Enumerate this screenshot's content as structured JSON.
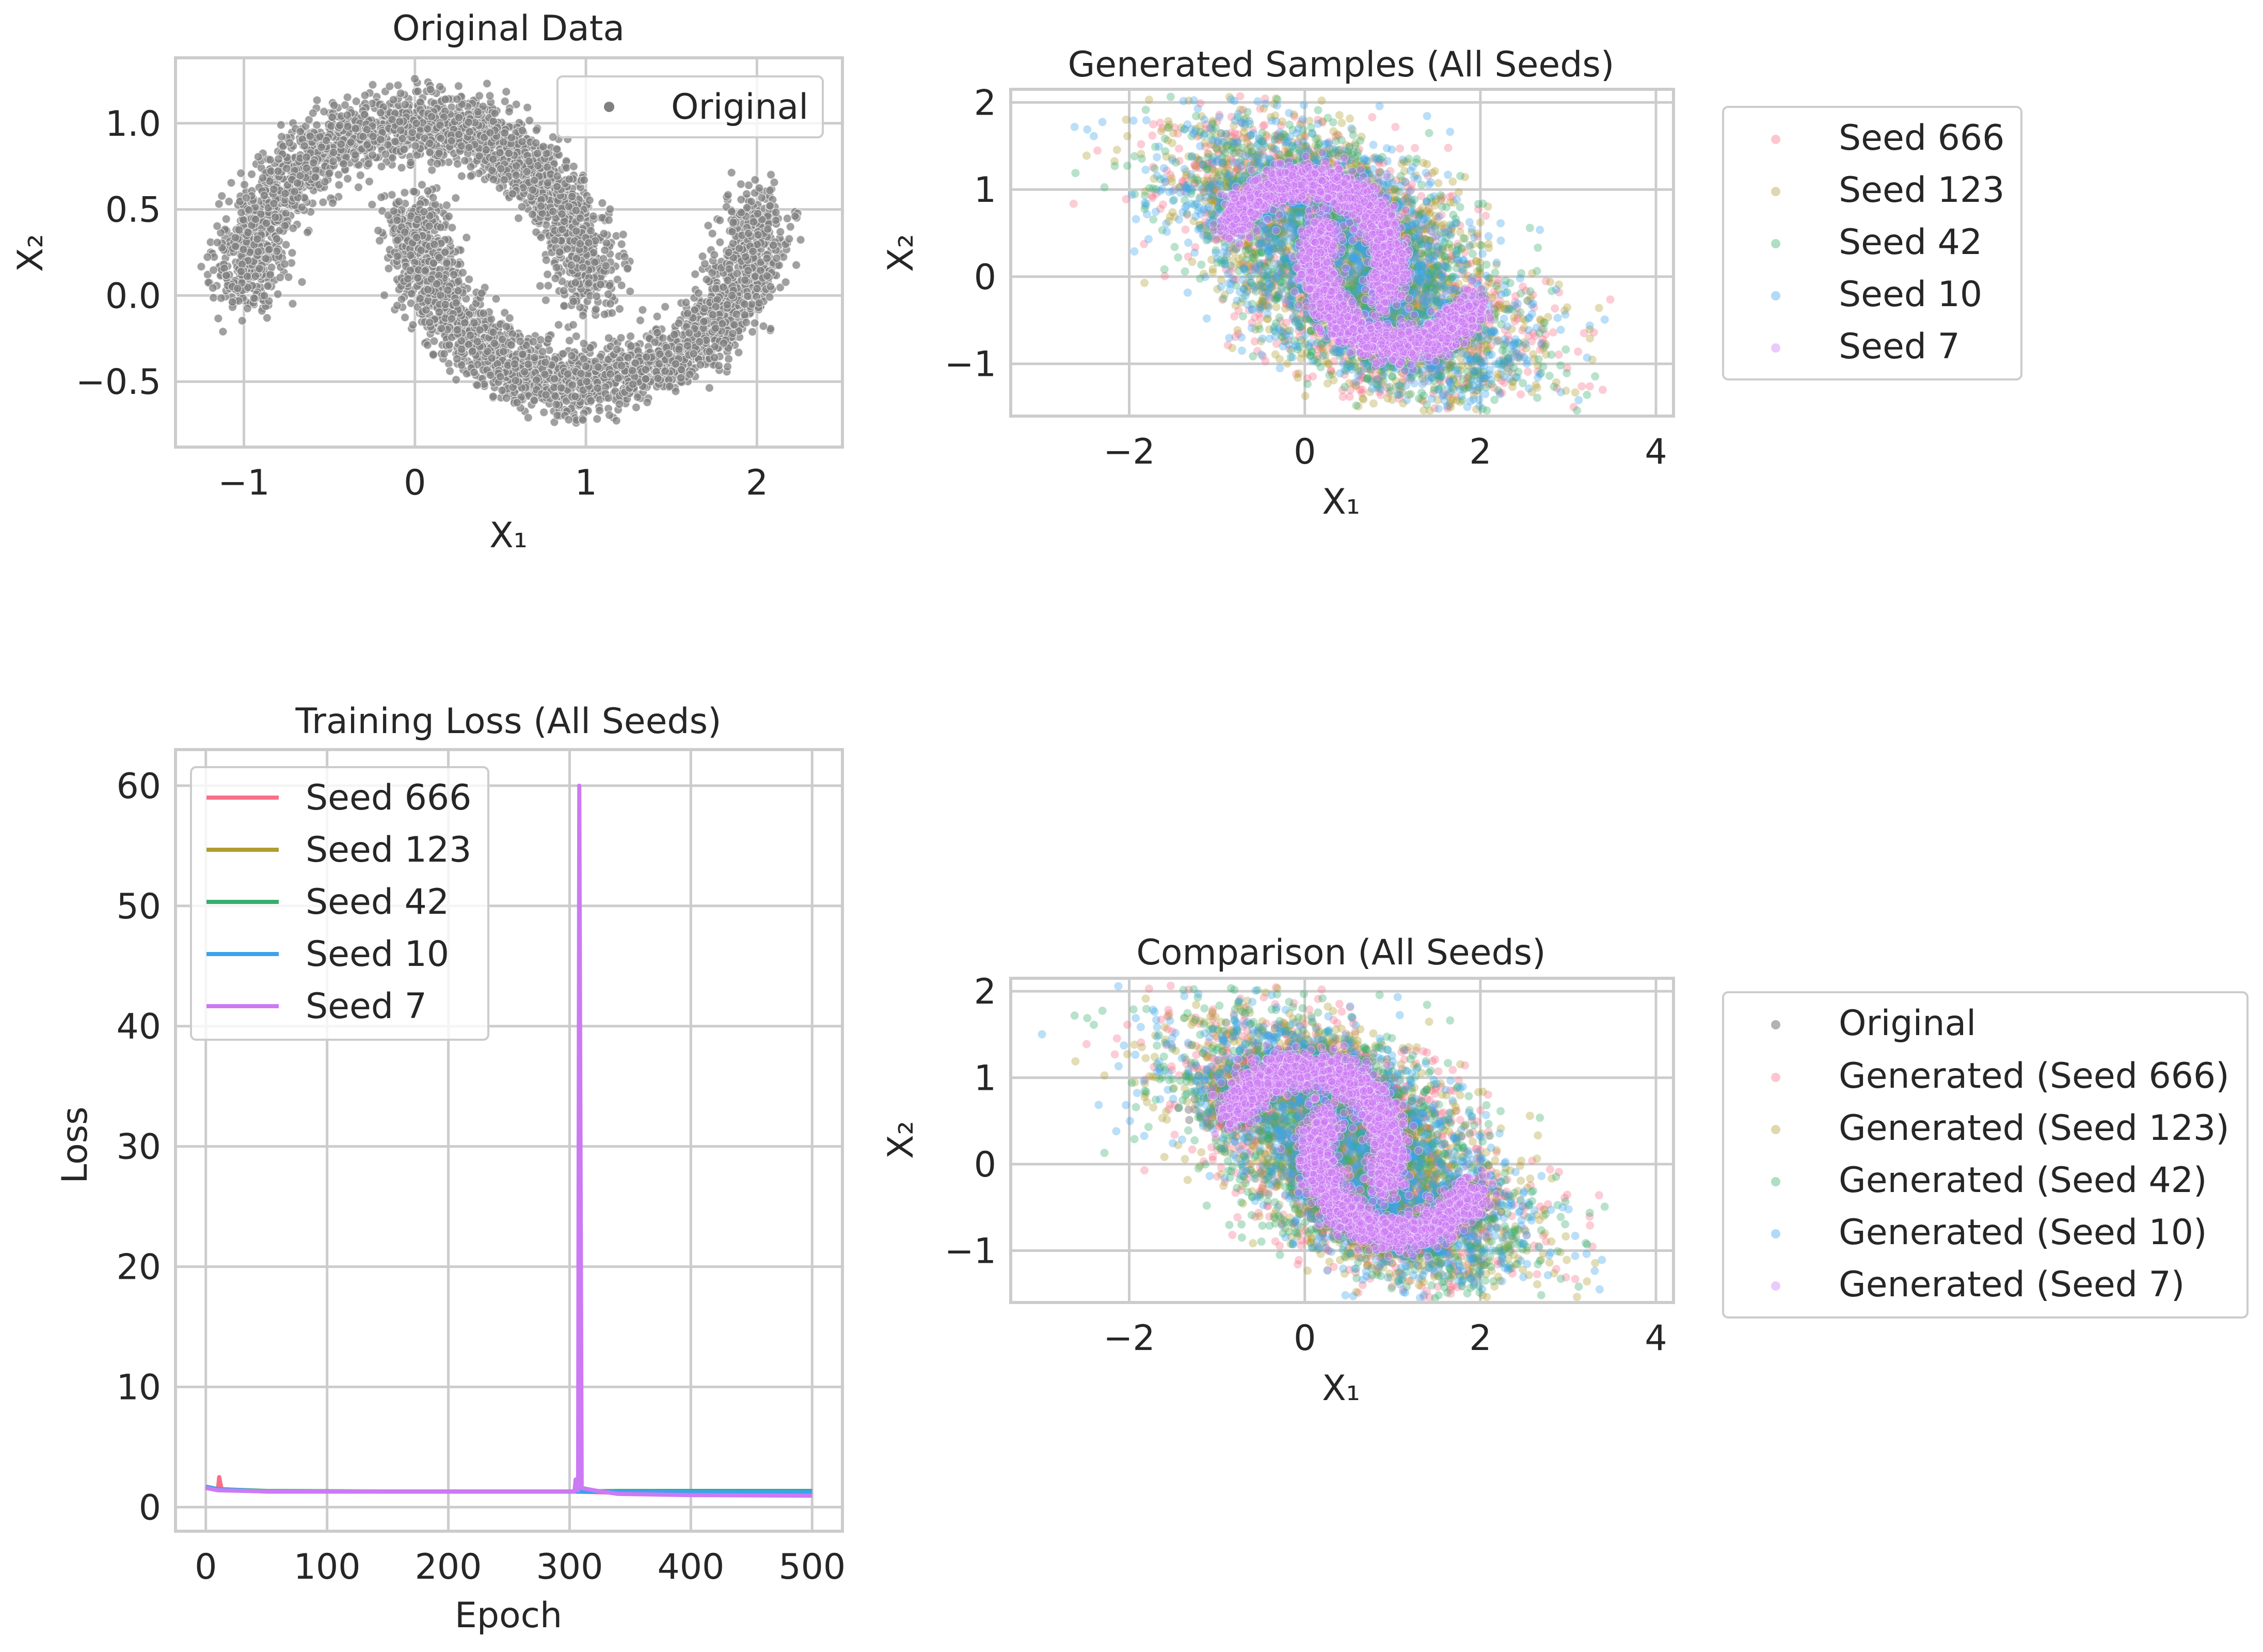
{
  "figure": {
    "colors": {
      "original": "#808080",
      "seed_666": "#f77189",
      "seed_123": "#ae9d31",
      "seed_42": "#36ad6e",
      "seed_10": "#3ba3ec",
      "seed_7": "#cc7af4",
      "grid": "#cccccc",
      "spine": "#cccccc",
      "background": "#ffffff"
    }
  },
  "chart_data": [
    {
      "id": "original",
      "type": "scatter",
      "title": "Original Data",
      "xlabel": "X₁",
      "ylabel": "X₂",
      "xlim": [
        -1.4,
        2.5
      ],
      "ylim": [
        -0.88,
        1.38
      ],
      "xticks": [
        -1,
        0,
        1,
        2
      ],
      "xtick_labels": [
        "−1",
        "0",
        "1",
        "2"
      ],
      "yticks": [
        -0.5,
        0.0,
        0.5,
        1.0
      ],
      "ytick_labels": [
        "−0.5",
        "0.0",
        "0.5",
        "1.0"
      ],
      "grid": true,
      "legend_position": "upper right",
      "series": [
        {
          "name": "Original",
          "color": "#808080",
          "distribution": "two interleaving half-moons (noise ≈ 0.1)",
          "upper_moon": {
            "center": [
              0.0,
              0.0
            ],
            "radius": 1.0,
            "angle_range_deg": [
              0,
              180
            ]
          },
          "lower_moon": {
            "center": [
              1.0,
              0.5
            ],
            "radius": 1.0,
            "angle_range_deg": [
              180,
              360
            ]
          }
        }
      ]
    },
    {
      "id": "generated",
      "type": "scatter",
      "title": "Generated Samples (All Seeds)",
      "xlabel": "X₁",
      "ylabel": "X₂",
      "xlim": [
        -3.35,
        4.2
      ],
      "ylim": [
        -1.6,
        2.15
      ],
      "xticks": [
        -2,
        0,
        2,
        4
      ],
      "xtick_labels": [
        "−2",
        "0",
        "2",
        "4"
      ],
      "yticks": [
        -1,
        0,
        1,
        2
      ],
      "ytick_labels": [
        "−1",
        "0",
        "1",
        "2"
      ],
      "grid": true,
      "legend_position": "outside right",
      "series": [
        {
          "name": "Seed 666",
          "color": "#f77189",
          "spread": "wide"
        },
        {
          "name": "Seed 123",
          "color": "#ae9d31",
          "spread": "wide"
        },
        {
          "name": "Seed 42",
          "color": "#36ad6e",
          "spread": "wide"
        },
        {
          "name": "Seed 10",
          "color": "#3ba3ec",
          "spread": "wide"
        },
        {
          "name": "Seed 7",
          "color": "#cc7af4",
          "spread": "tight, moon-shaped"
        }
      ]
    },
    {
      "id": "loss",
      "type": "line",
      "title": "Training Loss (All Seeds)",
      "xlabel": "Epoch",
      "ylabel": "Loss",
      "xlim": [
        -25,
        525
      ],
      "ylim": [
        -2,
        63
      ],
      "xticks": [
        0,
        100,
        200,
        300,
        400,
        500
      ],
      "xtick_labels": [
        "0",
        "100",
        "200",
        "300",
        "400",
        "500"
      ],
      "yticks": [
        0,
        10,
        20,
        30,
        40,
        50,
        60
      ],
      "ytick_labels": [
        "0",
        "10",
        "20",
        "30",
        "40",
        "50",
        "60"
      ],
      "grid": true,
      "legend_position": "upper left",
      "series": [
        {
          "name": "Seed 666",
          "color": "#f77189",
          "points": [
            [
              0,
              1.7
            ],
            [
              10,
              1.5
            ],
            [
              11,
              2.5
            ],
            [
              13,
              1.5
            ],
            [
              50,
              1.3
            ],
            [
              150,
              1.3
            ],
            [
              300,
              1.3
            ],
            [
              340,
              1.2
            ],
            [
              400,
              1.2
            ],
            [
              500,
              1.15
            ]
          ]
        },
        {
          "name": "Seed 123",
          "color": "#ae9d31",
          "points": [
            [
              0,
              1.7
            ],
            [
              10,
              1.5
            ],
            [
              50,
              1.3
            ],
            [
              150,
              1.3
            ],
            [
              300,
              1.3
            ],
            [
              340,
              1.3
            ],
            [
              400,
              1.3
            ],
            [
              500,
              1.3
            ]
          ]
        },
        {
          "name": "Seed 42",
          "color": "#36ad6e",
          "points": [
            [
              0,
              1.7
            ],
            [
              10,
              1.5
            ],
            [
              50,
              1.35
            ],
            [
              150,
              1.3
            ],
            [
              300,
              1.3
            ],
            [
              340,
              1.35
            ],
            [
              400,
              1.35
            ],
            [
              500,
              1.35
            ]
          ]
        },
        {
          "name": "Seed 10",
          "color": "#3ba3ec",
          "points": [
            [
              0,
              1.7
            ],
            [
              10,
              1.5
            ],
            [
              50,
              1.3
            ],
            [
              150,
              1.3
            ],
            [
              300,
              1.3
            ],
            [
              340,
              1.3
            ],
            [
              400,
              1.25
            ],
            [
              500,
              1.25
            ]
          ]
        },
        {
          "name": "Seed 7",
          "color": "#cc7af4",
          "points": [
            [
              0,
              1.6
            ],
            [
              10,
              1.4
            ],
            [
              50,
              1.3
            ],
            [
              150,
              1.3
            ],
            [
              300,
              1.3
            ],
            [
              304,
              1.3
            ],
            [
              305,
              2.3
            ],
            [
              306,
              1.5
            ],
            [
              307,
              1.4
            ],
            [
              308,
              60
            ],
            [
              309,
              30
            ],
            [
              310,
              1.6
            ],
            [
              320,
              1.4
            ],
            [
              340,
              1.1
            ],
            [
              400,
              1.0
            ],
            [
              500,
              0.95
            ]
          ]
        }
      ]
    },
    {
      "id": "comparison",
      "type": "scatter",
      "title": "Comparison (All Seeds)",
      "xlabel": "X₁",
      "ylabel": "X₂",
      "xlim": [
        -3.35,
        4.2
      ],
      "ylim": [
        -1.6,
        2.15
      ],
      "xticks": [
        -2,
        0,
        2,
        4
      ],
      "xtick_labels": [
        "−2",
        "0",
        "2",
        "4"
      ],
      "yticks": [
        -1,
        0,
        1,
        2
      ],
      "ytick_labels": [
        "−1",
        "0",
        "1",
        "2"
      ],
      "grid": true,
      "legend_position": "outside right",
      "series": [
        {
          "name": "Original",
          "color": "#808080"
        },
        {
          "name": "Generated (Seed 666)",
          "color": "#f77189"
        },
        {
          "name": "Generated (Seed 123)",
          "color": "#ae9d31"
        },
        {
          "name": "Generated (Seed 42)",
          "color": "#36ad6e"
        },
        {
          "name": "Generated (Seed 10)",
          "color": "#3ba3ec"
        },
        {
          "name": "Generated (Seed 7)",
          "color": "#cc7af4"
        }
      ]
    }
  ]
}
